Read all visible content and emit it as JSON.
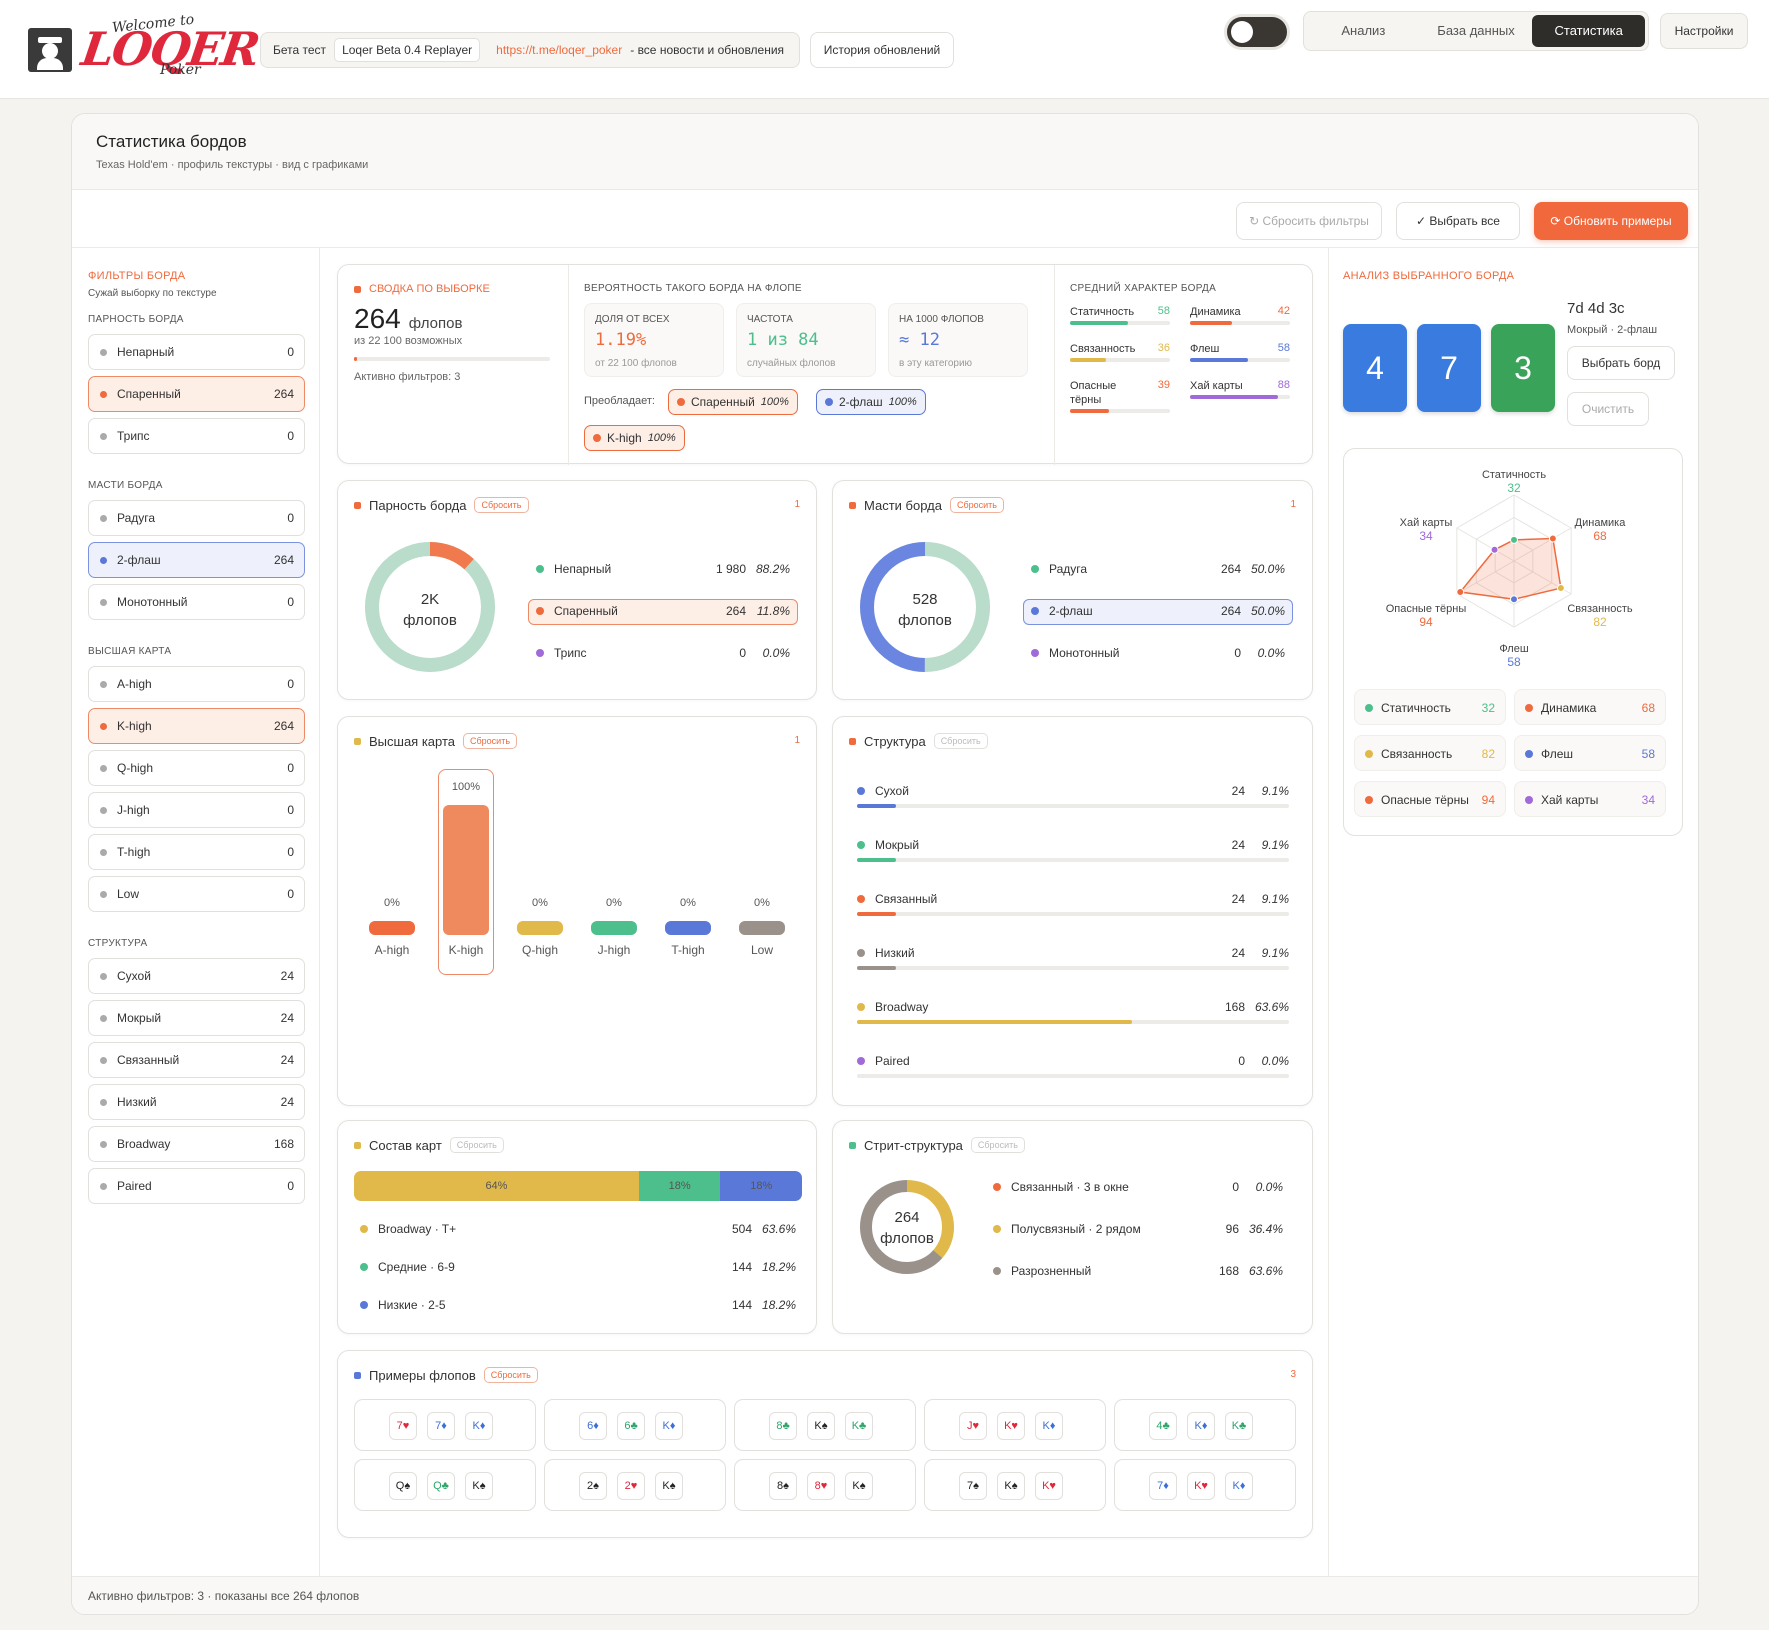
{
  "app": {
    "brand": "LOQER",
    "brand_sub1": "Welcome to",
    "brand_sub2": "Poker",
    "beta_label": "Бета тест",
    "version": "Loqer Beta 0.4 Replayer",
    "link": "https://t.me/loqer_poker",
    "news_text": "- все новости и обновления",
    "history_btn": "История обновлений",
    "tabs": [
      "Анализ",
      "База данных",
      "Статистика"
    ],
    "active_tab": "Статистика",
    "settings_btn": "Настройки"
  },
  "page": {
    "title": "Статистика бордов",
    "subtitle": "Texas Hold'em · профиль текстуры · вид с графиками",
    "reset_filters": "↻ Сбросить фильтры",
    "select_all": "✓ Выбрать все",
    "refresh": "⟳ Обновить примеры",
    "footer": "Активно фильтров: 3 · показаны все 264 флопов"
  },
  "sidebar": {
    "title": "ФИЛЬТРЫ БОРДА",
    "hint": "Сужай выборку по текстуре",
    "groups": [
      {
        "title": "ПАРНОСТЬ БОРДА",
        "items": [
          {
            "label": "Непарный",
            "count": "0"
          },
          {
            "label": "Спаренный",
            "count": "264",
            "selected": true
          },
          {
            "label": "Трипс",
            "count": "0"
          }
        ]
      },
      {
        "title": "МАСТИ БОРДА",
        "items": [
          {
            "label": "Радуга",
            "count": "0"
          },
          {
            "label": "2-флаш",
            "count": "264",
            "selected": true
          },
          {
            "label": "Монотонный",
            "count": "0"
          }
        ]
      },
      {
        "title": "ВЫСШАЯ КАРТА",
        "items": [
          {
            "label": "A-high",
            "count": "0"
          },
          {
            "label": "K-high",
            "count": "264",
            "selected": true
          },
          {
            "label": "Q-high",
            "count": "0"
          },
          {
            "label": "J-high",
            "count": "0"
          },
          {
            "label": "T-high",
            "count": "0"
          },
          {
            "label": "Low",
            "count": "0"
          }
        ]
      },
      {
        "title": "СТРУКТУРА",
        "items": [
          {
            "label": "Сухой",
            "count": "24"
          },
          {
            "label": "Мокрый",
            "count": "24"
          },
          {
            "label": "Связанный",
            "count": "24"
          },
          {
            "label": "Низкий",
            "count": "24"
          },
          {
            "label": "Broadway",
            "count": "168"
          },
          {
            "label": "Paired",
            "count": "0"
          }
        ]
      }
    ]
  },
  "summary": {
    "title": "СВОДКА ПО ВЫБОРКЕ",
    "count": "264",
    "unit": "флопов",
    "of": "из 22 100 возможных",
    "progress": 0.0119,
    "active": "Активно фильтров: 3"
  },
  "prob": {
    "title": "ВЕРОЯТНОСТЬ ТАКОГО БОРДА НА ФЛОПЕ",
    "boxes": [
      {
        "label": "ДОЛЯ ОТ ВСЕХ",
        "value": "1.19%",
        "sub": "от 22 100 флопов",
        "color": "#ef6a3d"
      },
      {
        "label": "ЧАСТОТА",
        "value": "1 из 84",
        "sub": "случайных флопов",
        "color": "#4cbf8c"
      },
      {
        "label": "НА 1000 ФЛОПОВ",
        "value": "≈ 12",
        "sub": "в эту категорию",
        "color": "#5a78d8"
      }
    ],
    "prevails_label": "Преобладает:",
    "chips": [
      {
        "label": "Спаренный",
        "pct": "100%",
        "color": "#ef6a3d"
      },
      {
        "label": "2-флаш",
        "pct": "100%",
        "color": "#5a78d8"
      },
      {
        "label": "K-high",
        "pct": "100%",
        "color": "#ef6a3d"
      }
    ]
  },
  "character": {
    "title": "СРЕДНИЙ ХАРАКТЕР БОРДА",
    "items": [
      {
        "label": "Статичность",
        "value": "58",
        "frac": 0.58,
        "color": "#4cbf8c"
      },
      {
        "label": "Динамика",
        "value": "42",
        "frac": 0.42,
        "color": "#ef6a3d"
      },
      {
        "label": "Связанность",
        "value": "36",
        "frac": 0.36,
        "color": "#e0b94a"
      },
      {
        "label": "Флеш",
        "value": "58",
        "frac": 0.58,
        "color": "#5a78d8"
      },
      {
        "label": "Опасные тёрны",
        "value": "39",
        "frac": 0.39,
        "color": "#ef6a3d"
      },
      {
        "label": "Хай карты",
        "value": "88",
        "frac": 0.88,
        "color": "#a06ad8"
      }
    ]
  },
  "pair_card": {
    "title": "Парность борда",
    "reset": "Сбросить",
    "num": "1",
    "center1": "2K",
    "center2": "флопов",
    "rows": [
      {
        "label": "Непарный",
        "value": "1 980",
        "pct": "88.2%",
        "color": "#4cbf8c",
        "frac": 0.882
      },
      {
        "label": "Спаренный",
        "value": "264",
        "pct": "11.8%",
        "color": "#ef6a3d",
        "frac": 0.118,
        "sel": "o"
      },
      {
        "label": "Трипс",
        "value": "0",
        "pct": "0.0%",
        "color": "#a06ad8",
        "frac": 0
      }
    ]
  },
  "suit_card": {
    "title": "Масти борда",
    "reset": "Сбросить",
    "num": "1",
    "center1": "528",
    "center2": "флопов",
    "rows": [
      {
        "label": "Радуга",
        "value": "264",
        "pct": "50.0%",
        "color": "#4cbf8c",
        "frac": 0.5
      },
      {
        "label": "2-флаш",
        "value": "264",
        "pct": "50.0%",
        "color": "#5a78d8",
        "frac": 0.5,
        "sel": "b"
      },
      {
        "label": "Монотонный",
        "value": "0",
        "pct": "0.0%",
        "color": "#a06ad8",
        "frac": 0
      }
    ]
  },
  "high_card": {
    "title": "Высшая карта",
    "reset": "Сбросить",
    "num": "1",
    "bars": [
      {
        "label": "A-high",
        "pct": "0%",
        "frac": 0,
        "color": "#ef6a3d"
      },
      {
        "label": "K-high",
        "pct": "100%",
        "frac": 1,
        "color": "#ef8a5e",
        "sel": true
      },
      {
        "label": "Q-high",
        "pct": "0%",
        "frac": 0,
        "color": "#e0b94a"
      },
      {
        "label": "J-high",
        "pct": "0%",
        "frac": 0,
        "color": "#4cbf8c"
      },
      {
        "label": "T-high",
        "pct": "0%",
        "frac": 0,
        "color": "#5a78d8"
      },
      {
        "label": "Low",
        "pct": "0%",
        "frac": 0,
        "color": "#9a928a"
      }
    ]
  },
  "structure": {
    "title": "Структура",
    "reset": "Сбросить",
    "rows": [
      {
        "label": "Сухой",
        "value": "24",
        "pct": "9.1%",
        "frac": 0.091,
        "color": "#5a78d8"
      },
      {
        "label": "Мокрый",
        "value": "24",
        "pct": "9.1%",
        "frac": 0.091,
        "color": "#4cbf8c"
      },
      {
        "label": "Связанный",
        "value": "24",
        "pct": "9.1%",
        "frac": 0.091,
        "color": "#ef6a3d"
      },
      {
        "label": "Низкий",
        "value": "24",
        "pct": "9.1%",
        "frac": 0.091,
        "color": "#9a928a"
      },
      {
        "label": "Broadway",
        "value": "168",
        "pct": "63.6%",
        "frac": 0.636,
        "color": "#e0b94a"
      },
      {
        "label": "Paired",
        "value": "0",
        "pct": "0.0%",
        "frac": 0,
        "color": "#a06ad8"
      }
    ]
  },
  "comp": {
    "title": "Состав карт",
    "reset": "Сбросить",
    "segments": [
      {
        "pct": "64%",
        "frac": 0.636,
        "color": "#e0b94a"
      },
      {
        "pct": "18%",
        "frac": 0.182,
        "color": "#4cbf8c"
      },
      {
        "pct": "18%",
        "frac": 0.182,
        "color": "#5a78d8"
      }
    ],
    "rows": [
      {
        "label": "Broadway · T+",
        "value": "504",
        "pct": "63.6%",
        "color": "#e0b94a"
      },
      {
        "label": "Средние · 6-9",
        "value": "144",
        "pct": "18.2%",
        "color": "#4cbf8c"
      },
      {
        "label": "Низкие · 2-5",
        "value": "144",
        "pct": "18.2%",
        "color": "#5a78d8"
      }
    ]
  },
  "straight": {
    "title": "Стрит-структура",
    "reset": "Сбросить",
    "center1": "264",
    "center2": "флопов",
    "rows": [
      {
        "label": "Связанный · 3 в окне",
        "value": "0",
        "pct": "0.0%",
        "frac": 0,
        "color": "#ef6a3d"
      },
      {
        "label": "Полусвязный · 2 рядом",
        "value": "96",
        "pct": "36.4%",
        "frac": 0.364,
        "color": "#e0b94a"
      },
      {
        "label": "Разрозненный",
        "value": "168",
        "pct": "63.6%",
        "frac": 0.636,
        "color": "#9a928a"
      }
    ]
  },
  "examples": {
    "title": "Примеры флопов",
    "reset": "Сбросить",
    "num": "3",
    "flops": [
      [
        {
          "t": "7♥",
          "c": "#e0283c"
        },
        {
          "t": "7♦",
          "c": "#3a6fd8"
        },
        {
          "t": "K♦",
          "c": "#3a6fd8"
        }
      ],
      [
        {
          "t": "6♦",
          "c": "#3a6fd8"
        },
        {
          "t": "6♣",
          "c": "#2ea56a"
        },
        {
          "t": "K♦",
          "c": "#3a6fd8"
        }
      ],
      [
        {
          "t": "8♣",
          "c": "#2ea56a"
        },
        {
          "t": "K♠",
          "c": "#222"
        },
        {
          "t": "K♣",
          "c": "#2ea56a"
        }
      ],
      [
        {
          "t": "J♥",
          "c": "#e0283c"
        },
        {
          "t": "K♥",
          "c": "#e0283c"
        },
        {
          "t": "K♦",
          "c": "#3a6fd8"
        }
      ],
      [
        {
          "t": "4♣",
          "c": "#2ea56a"
        },
        {
          "t": "K♦",
          "c": "#3a6fd8"
        },
        {
          "t": "K♣",
          "c": "#2ea56a"
        }
      ],
      [
        {
          "t": "Q♠",
          "c": "#222"
        },
        {
          "t": "Q♣",
          "c": "#2ea56a"
        },
        {
          "t": "K♠",
          "c": "#222"
        }
      ],
      [
        {
          "t": "2♠",
          "c": "#222"
        },
        {
          "t": "2♥",
          "c": "#e0283c"
        },
        {
          "t": "K♠",
          "c": "#222"
        }
      ],
      [
        {
          "t": "8♠",
          "c": "#222"
        },
        {
          "t": "8♥",
          "c": "#e0283c"
        },
        {
          "t": "K♠",
          "c": "#222"
        }
      ],
      [
        {
          "t": "7♠",
          "c": "#222"
        },
        {
          "t": "K♠",
          "c": "#222"
        },
        {
          "t": "K♥",
          "c": "#e0283c"
        }
      ],
      [
        {
          "t": "7♦",
          "c": "#3a6fd8"
        },
        {
          "t": "K♥",
          "c": "#e0283c"
        },
        {
          "t": "K♦",
          "c": "#3a6fd8"
        }
      ]
    ]
  },
  "analysis": {
    "title": "АНАЛИЗ ВЫБРАННОГО БОРДА",
    "board": "7d 4d 3c",
    "desc": "Мокрый · 2-флаш",
    "cards": [
      {
        "rank": "4",
        "color": "#3a7be0"
      },
      {
        "rank": "7",
        "color": "#3a7be0"
      },
      {
        "rank": "3",
        "color": "#3aa35a"
      }
    ],
    "select_btn": "Выбрать борд",
    "clear_btn": "Очистить",
    "radar": [
      {
        "label": "Статичность",
        "value": "32",
        "v": 32,
        "color": "#4cbf8c"
      },
      {
        "label": "Динамика",
        "value": "68",
        "v": 68,
        "color": "#ef6a3d"
      },
      {
        "label": "Связанность",
        "value": "82",
        "v": 82,
        "color": "#e0b94a"
      },
      {
        "label": "Флеш",
        "value": "58",
        "v": 58,
        "color": "#5a78d8"
      },
      {
        "label": "Опасные тёрны",
        "value": "94",
        "v": 94,
        "color": "#ef6a3d"
      },
      {
        "label": "Хай карты",
        "value": "34",
        "v": 34,
        "color": "#a06ad8"
      }
    ]
  }
}
